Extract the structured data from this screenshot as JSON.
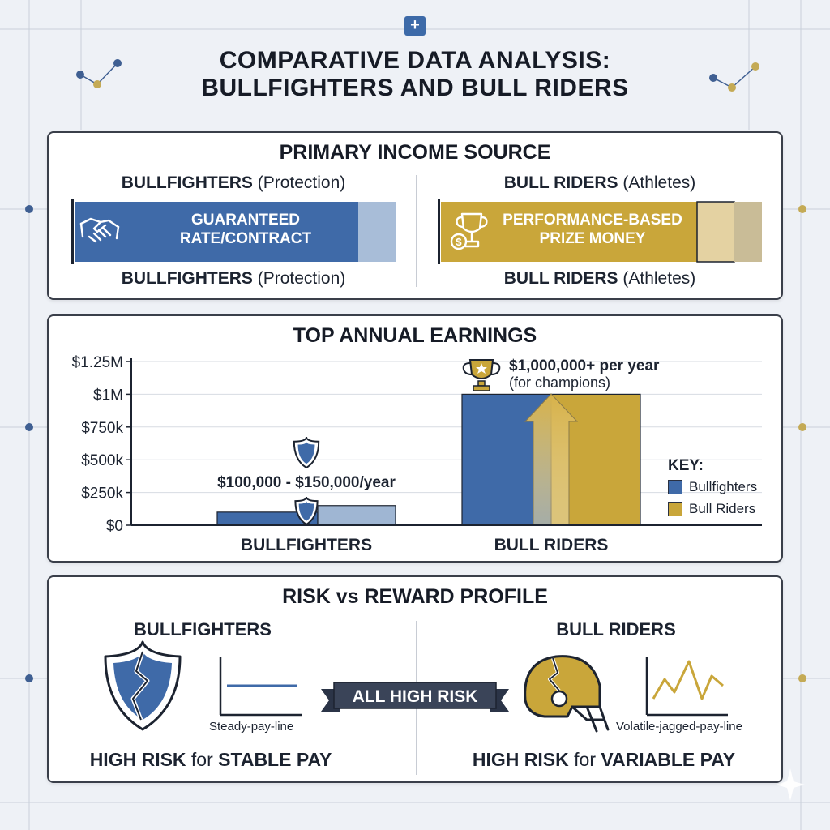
{
  "page": {
    "title_line1": "COMPARATIVE DATA ANALYSIS:",
    "title_line2": "BULLFIGHTERS AND BULL RIDERS",
    "plus_symbol": "+"
  },
  "colors": {
    "bullfighters": "#3f6aa8",
    "bullfighters_light": "#9fb6d3",
    "bull_riders": "#c9a63a",
    "bull_riders_light": "#e3d1a0",
    "bull_riders_dark": "#c4b690",
    "ink": "#1c2330"
  },
  "income": {
    "title": "PRIMARY INCOME SOURCE",
    "bullfighters": {
      "name": "BULLFIGHTERS",
      "role": "(Protection)",
      "bar_line1": "GUARANTEED",
      "bar_line2": "RATE/CONTRACT",
      "icon": "handshake-icon"
    },
    "bull_riders": {
      "name": "BULL RIDERS",
      "role": "(Athletes)",
      "bar_line1": "PERFORMANCE-BASED",
      "bar_line2": "PRIZE MONEY",
      "icon": "trophy-coin-icon"
    }
  },
  "earnings": {
    "title": "TOP ANNUAL EARNINGS",
    "chart_data": {
      "type": "bar",
      "title": "TOP ANNUAL EARNINGS",
      "categories": [
        "BULLFIGHTERS",
        "BULL RIDERS"
      ],
      "y_ticks": [
        "$0",
        "$250k",
        "$500k",
        "$750k",
        "$1M",
        "$1.25M"
      ],
      "y_tick_values": [
        0,
        250000,
        500000,
        750000,
        1000000,
        1250000
      ],
      "ylim": [
        0,
        1250000
      ],
      "bars": [
        {
          "category": "BULLFIGHTERS",
          "series": "Bullfighters",
          "low": 0,
          "high": 100000
        },
        {
          "category": "BULLFIGHTERS",
          "series": "Bullfighters range",
          "low": 0,
          "high": 150000
        },
        {
          "category": "BULL RIDERS",
          "series": "Bullfighters",
          "low": 0,
          "high": 1000000
        },
        {
          "category": "BULL RIDERS",
          "series": "Bull Riders",
          "low": 0,
          "high": 1000000
        }
      ],
      "annotations": [
        {
          "category": "BULLFIGHTERS",
          "text": "$100,000 - $150,000/year",
          "icon": "shield-icon"
        },
        {
          "category": "BULL RIDERS",
          "text_line1": "$1,000,000+ per year",
          "text_line2": "(for champions)",
          "icon": "trophy-icon"
        }
      ],
      "legend": {
        "title": "KEY:",
        "position": "right",
        "items": [
          {
            "name": "Bullfighters",
            "color": "#3f6aa8"
          },
          {
            "name": "Bull Riders",
            "color": "#c9a63a"
          }
        ]
      }
    }
  },
  "risk": {
    "title": "RISK vs REWARD PROFILE",
    "banner": "ALL HIGH RISK",
    "bullfighters": {
      "name": "BULLFIGHTERS",
      "icon": "broken-shield-icon",
      "line_caption": "Steady-pay-line",
      "foot_bold1": "HIGH RISK",
      "foot_mid": " for ",
      "foot_bold2": "STABLE PAY"
    },
    "bull_riders": {
      "name": "BULL RIDERS",
      "icon": "cracked-helmet-icon",
      "line_caption": "Volatile-jagged-pay-line",
      "foot_bold1": "HIGH RISK",
      "foot_mid": " for ",
      "foot_bold2": "VARIABLE PAY"
    }
  }
}
